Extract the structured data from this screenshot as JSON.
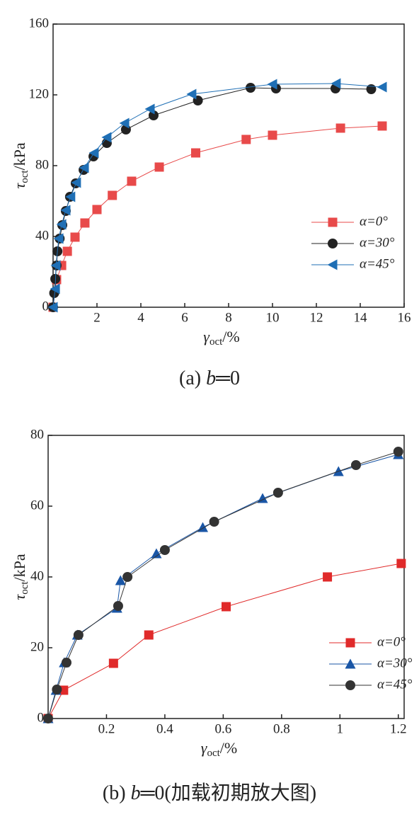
{
  "chart_data": [
    {
      "type": "line",
      "xlabel": {
        "main": "γ",
        "sub": "oct",
        "unit": "/%"
      },
      "ylabel": {
        "main": "τ",
        "sub": "oct",
        "unit": "/kPa"
      },
      "caption": {
        "prefix": "(a) ",
        "var": "b",
        "suffix": "═0"
      },
      "xlim": [
        0,
        16
      ],
      "xticks": [
        2,
        4,
        6,
        8,
        10,
        12,
        14,
        16
      ],
      "ylim": [
        0,
        160
      ],
      "yticks": [
        0,
        40,
        80,
        120,
        160
      ],
      "legend": "right",
      "series": [
        {
          "name": "α=0°",
          "color": "#e84a4a",
          "marker": "square",
          "x": [
            0,
            0.16,
            0.39,
            0.65,
            1.0,
            1.45,
            2.0,
            2.7,
            3.58,
            4.84,
            6.5,
            8.8,
            10.0,
            13.1,
            15.0
          ],
          "values": [
            0,
            15.6,
            23.6,
            31.6,
            39.6,
            47.6,
            55.2,
            63.2,
            71.2,
            79.2,
            87.2,
            94.8,
            97.2,
            101.2,
            102.4
          ]
        },
        {
          "name": "α=30°",
          "color": "#222222",
          "marker": "circle",
          "x": [
            0,
            0.05,
            0.1,
            0.16,
            0.2,
            0.3,
            0.42,
            0.58,
            0.77,
            1.03,
            1.39,
            1.84,
            2.45,
            3.32,
            4.58,
            6.6,
            9.0,
            10.16,
            12.87,
            14.5
          ],
          "values": [
            0,
            8,
            16,
            23.6,
            31.6,
            38.8,
            46.4,
            54.4,
            62.4,
            70,
            77.6,
            85.2,
            92.8,
            100.4,
            108.4,
            116.8,
            124,
            123.6,
            123.6,
            123.2
          ]
        },
        {
          "name": "α=45°",
          "color": "#1f6fb5",
          "marker": "triangle-left",
          "x": [
            0,
            0.1,
            0.13,
            0.26,
            0.39,
            0.58,
            0.8,
            1.06,
            1.42,
            1.87,
            2.45,
            3.26,
            4.42,
            6.32,
            10.0,
            12.9,
            15.0
          ],
          "values": [
            0,
            10.4,
            23.6,
            38.8,
            46.8,
            54.8,
            62.4,
            70.4,
            78.8,
            87.2,
            96,
            104,
            112,
            120.4,
            126,
            126.4,
            124.4
          ]
        }
      ]
    },
    {
      "type": "line",
      "xlabel": {
        "main": "γ",
        "sub": "oct",
        "unit": "/%"
      },
      "ylabel": {
        "main": "τ",
        "sub": "oct",
        "unit": "/kPa"
      },
      "caption": {
        "prefix": "(b) ",
        "var": "b",
        "suffix": "═0(加载初期放大图)"
      },
      "xlim": [
        0,
        1.22
      ],
      "xticks": [
        0.2,
        0.4,
        0.6,
        0.8,
        1.0,
        1.2
      ],
      "ylim": [
        0,
        80
      ],
      "yticks": [
        0,
        20,
        40,
        60,
        80
      ],
      "legend": "right",
      "series": [
        {
          "name": "α=0°",
          "color": "#e02a2a",
          "marker": "square",
          "x": [
            0,
            0.053,
            0.224,
            0.345,
            0.61,
            0.957,
            1.21
          ],
          "values": [
            0,
            8,
            15.6,
            23.6,
            31.6,
            40,
            43.8
          ]
        },
        {
          "name": "α=30°",
          "color": "#1a56a6",
          "marker": "triangle-up",
          "x": [
            0,
            0.027,
            0.055,
            0.1,
            0.236,
            0.248,
            0.371,
            0.53,
            0.735,
            0.995,
            1.2
          ],
          "values": [
            0,
            8,
            15.8,
            23.6,
            31.2,
            39,
            46.6,
            54,
            62.2,
            69.8,
            74.6
          ]
        },
        {
          "name": "α=45°",
          "color": "#333333",
          "marker": "circle",
          "x": [
            0,
            0.03,
            0.063,
            0.104,
            0.24,
            0.272,
            0.4,
            0.569,
            0.788,
            1.055,
            1.2
          ],
          "values": [
            0,
            8.2,
            15.8,
            23.6,
            31.8,
            40,
            47.6,
            55.6,
            63.8,
            71.6,
            75.4
          ]
        }
      ]
    }
  ]
}
